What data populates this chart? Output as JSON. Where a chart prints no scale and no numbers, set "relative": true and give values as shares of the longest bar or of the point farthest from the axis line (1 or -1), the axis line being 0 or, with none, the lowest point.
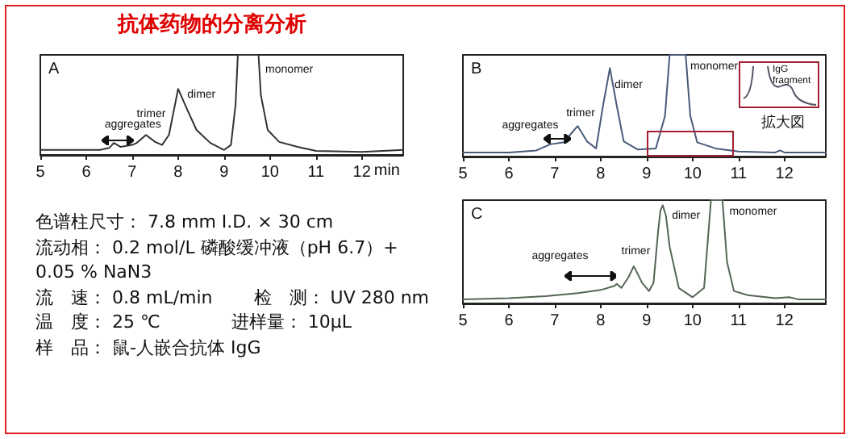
{
  "chart_data": [
    {
      "type": "line",
      "title": "抗体药物的分离分析",
      "xlabel": "min",
      "relative": true,
      "color": "#333333",
      "x": [
        5,
        6.3,
        6.5,
        6.6,
        6.75,
        7.0,
        7.1,
        7.3,
        7.5,
        7.65,
        7.8,
        8.0,
        8.2,
        8.4,
        8.7,
        9.0,
        9.15,
        9.25,
        9.3,
        9.75,
        9.8,
        9.95,
        10.2,
        10.6,
        11,
        12,
        12.9
      ],
      "values": [
        0.05,
        0.05,
        0.07,
        0.12,
        0.08,
        0.1,
        0.12,
        0.2,
        0.13,
        0.1,
        0.2,
        0.66,
        0.45,
        0.25,
        0.12,
        0.05,
        0.1,
        0.5,
        1,
        1,
        0.6,
        0.25,
        0.13,
        0.08,
        0.04,
        0.03,
        0.05
      ],
      "xlim": [
        5,
        12.9
      ],
      "xticks": [
        5,
        6,
        7,
        8,
        9,
        10,
        11,
        12
      ],
      "grid": false,
      "marker": "none",
      "line_style": "solid",
      "annotations": [
        "A",
        "aggregates",
        "trimer",
        "dimer",
        "monomer"
      ]
    },
    {
      "type": "line",
      "relative": true,
      "color": "#4a5a7a",
      "x": [
        5,
        6,
        6.6,
        6.9,
        7.2,
        7.4,
        7.5,
        7.7,
        7.9,
        8.05,
        8.2,
        8.35,
        8.5,
        8.8,
        9.2,
        9.4,
        9.5,
        9.85,
        9.95,
        10.1,
        10.5,
        11,
        11.8,
        11.9,
        12,
        12.9
      ],
      "values": [
        0.04,
        0.04,
        0.06,
        0.12,
        0.14,
        0.25,
        0.3,
        0.15,
        0.08,
        0.5,
        0.87,
        0.5,
        0.15,
        0.07,
        0.08,
        0.4,
        1,
        1,
        0.4,
        0.14,
        0.08,
        0.05,
        0.04,
        0.06,
        0.04,
        0.04
      ],
      "xlim": [
        5,
        12.9
      ],
      "xticks": [
        5,
        6,
        7,
        8,
        9,
        10,
        11,
        12
      ],
      "grid": false,
      "marker": "none",
      "line_style": "solid",
      "annotations": [
        "B",
        "aggregates",
        "trimer",
        "dimer",
        "monomer",
        "IgG fragment",
        "拡大図"
      ]
    },
    {
      "type": "line",
      "relative": true,
      "color": "#556655",
      "x": [
        5,
        6,
        6.8,
        7.5,
        8,
        8.3,
        8.35,
        8.45,
        8.6,
        8.72,
        8.9,
        9.05,
        9.15,
        9.25,
        9.3,
        9.35,
        9.42,
        9.5,
        9.7,
        10,
        10.25,
        10.4,
        10.65,
        10.75,
        10.9,
        11.2,
        11.8,
        12.1,
        12.3,
        12.9
      ],
      "values": [
        0.04,
        0.05,
        0.07,
        0.1,
        0.13,
        0.17,
        0.19,
        0.15,
        0.25,
        0.36,
        0.2,
        0.12,
        0.2,
        0.7,
        0.9,
        0.95,
        0.85,
        0.55,
        0.15,
        0.06,
        0.15,
        1,
        1,
        0.4,
        0.12,
        0.08,
        0.05,
        0.06,
        0.04,
        0.04
      ],
      "xlim": [
        5,
        12.9
      ],
      "xticks": [
        5,
        6,
        7,
        8,
        9,
        10,
        11,
        12
      ],
      "grid": false,
      "marker": "none",
      "line_style": "solid",
      "annotations": [
        "C",
        "aggregates",
        "trimer",
        "dimer",
        "monomer"
      ]
    },
    {
      "type": "other",
      "annotations": [
        "色谱柱尺寸： 7.8 mm I.D. × 30 cm",
        "流动相： 0.2 mol/L 磷酸缓冲液（pH 6.7）+",
        "0.05 % NaN3",
        "流　速： 0.8 mL/min　　 检　测： UV 280 nm",
        "温　度： 25 ℃　　　　进样量： 10μL",
        "样　品： 鼠-人嵌合抗体 IgG"
      ]
    }
  ]
}
